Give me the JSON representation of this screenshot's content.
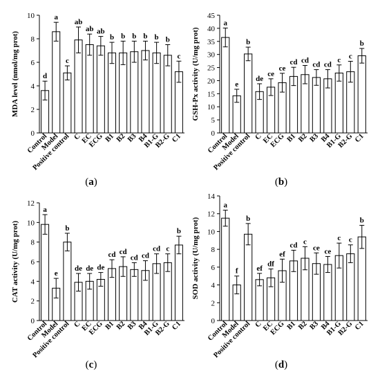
{
  "chart_data": [
    {
      "type": "bar",
      "panel_label": "a",
      "ylabel": "MDA level (nmol/mg prot)",
      "ylim": [
        0,
        10
      ],
      "yticks": [
        0,
        2,
        4,
        6,
        8,
        10
      ],
      "categories": [
        "Control",
        "Model",
        "Positive control",
        "C",
        "EC",
        "ECG",
        "B1",
        "B2",
        "B3",
        "B4",
        "B1-G",
        "B2-G",
        "C1"
      ],
      "values": [
        3.6,
        8.6,
        5.1,
        7.9,
        7.5,
        7.4,
        6.8,
        6.8,
        6.9,
        7.0,
        6.8,
        6.6,
        5.2
      ],
      "errors": [
        0.8,
        0.8,
        0.6,
        1.1,
        0.9,
        0.8,
        0.9,
        1.0,
        0.9,
        0.8,
        0.9,
        0.9,
        0.9
      ],
      "significance": [
        "d",
        "a",
        "c",
        "ab",
        "ab",
        "ab",
        "b",
        "b",
        "b",
        "b",
        "b",
        "b",
        "c"
      ]
    },
    {
      "type": "bar",
      "panel_label": "b",
      "ylabel": "GSH-Px activity (U/mg prot)",
      "ylim": [
        0,
        45
      ],
      "yticks": [
        0,
        5,
        10,
        15,
        20,
        25,
        30,
        35,
        40,
        45
      ],
      "categories": [
        "Control",
        "Model",
        "Positive control",
        "C",
        "EC",
        "ECG",
        "B1",
        "B2",
        "B3",
        "B4",
        "B1-G",
        "B2-G",
        "C1"
      ],
      "values": [
        36.5,
        14.2,
        30.2,
        15.8,
        17.5,
        19.2,
        21.6,
        22.3,
        21.2,
        20.7,
        22.9,
        23.4,
        29.5
      ],
      "errors": [
        3.6,
        2.5,
        2.6,
        3.0,
        3.2,
        3.6,
        3.5,
        3.5,
        3.0,
        3.5,
        3.1,
        4.0,
        2.8
      ],
      "significance": [
        "a",
        "e",
        "b",
        "de",
        "ce",
        "ce",
        "cd",
        "cd",
        "cd",
        "cd",
        "c",
        "c",
        "b"
      ]
    },
    {
      "type": "bar",
      "panel_label": "c",
      "ylabel": "CAT activity (U/mg prot)",
      "ylim": [
        0,
        12
      ],
      "yticks": [
        0,
        2,
        4,
        6,
        8,
        10,
        12
      ],
      "categories": [
        "Control",
        "Model",
        "Positive control",
        "C",
        "EC",
        "ECG",
        "B1",
        "B2",
        "B3",
        "B4",
        "B1-G",
        "B2-G",
        "C1"
      ],
      "values": [
        9.8,
        3.3,
        8.0,
        3.9,
        4.0,
        4.2,
        5.3,
        5.5,
        5.2,
        5.1,
        5.8,
        5.9,
        7.7
      ],
      "errors": [
        1.0,
        1.0,
        0.9,
        0.9,
        0.8,
        0.7,
        0.9,
        1.0,
        0.7,
        1.0,
        1.0,
        0.9,
        0.9
      ],
      "significance": [
        "a",
        "e",
        "b",
        "de",
        "de",
        "de",
        "cd",
        "cd",
        "cd",
        "cd",
        "cd",
        "c",
        "b"
      ]
    },
    {
      "type": "bar",
      "panel_label": "d",
      "ylabel": "SOD activity (U/mg prot)",
      "ylim": [
        0,
        14
      ],
      "yticks": [
        0,
        2,
        4,
        6,
        8,
        10,
        12,
        14
      ],
      "categories": [
        "Control",
        "Model",
        "Positive control",
        "C",
        "EC",
        "ECG",
        "B1",
        "B2",
        "B3",
        "B4",
        "B1-G",
        "B2-G",
        "C1"
      ],
      "values": [
        11.5,
        4.0,
        9.7,
        4.6,
        4.8,
        5.6,
        6.7,
        7.0,
        6.4,
        6.3,
        7.3,
        7.5,
        9.4
      ],
      "errors": [
        0.9,
        1.0,
        1.2,
        0.7,
        1.0,
        1.3,
        1.2,
        1.3,
        1.2,
        0.9,
        1.4,
        1.0,
        1.3
      ],
      "significance": [
        "a",
        "f",
        "b",
        "ef",
        "df",
        "ef",
        "cd",
        "c",
        "ce",
        "ce",
        "c",
        "c",
        "b"
      ]
    }
  ]
}
